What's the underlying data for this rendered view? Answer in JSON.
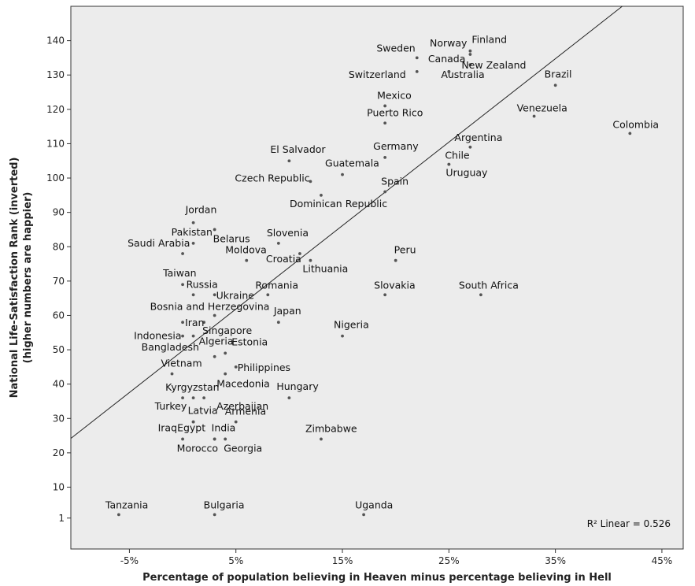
{
  "chart_data": {
    "type": "scatter",
    "title": "",
    "xlabel": "Percentage of population believing in Heaven minus percentage believing in Hell",
    "ylabel_line1": "National Life-Satisfaction Rank (inverted)",
    "ylabel_line2": "(higher numbers are happier)",
    "xlim": [
      -10.5,
      47
    ],
    "ylim": [
      -8,
      150
    ],
    "x_ticks": [
      -5,
      5,
      15,
      25,
      35,
      45
    ],
    "x_tick_labels": [
      "-5%",
      "5%",
      "15%",
      "25%",
      "35%",
      "45%"
    ],
    "y_ticks": [
      1,
      10,
      20,
      30,
      40,
      50,
      60,
      70,
      80,
      90,
      100,
      110,
      120,
      130,
      140
    ],
    "y_tick_labels": [
      "1",
      "10",
      "20",
      "30",
      "40",
      "50",
      "60",
      "70",
      "80",
      "90",
      "100",
      "110",
      "120",
      "130",
      "140"
    ],
    "grid": false,
    "fit_line": {
      "slope": 2.43,
      "intercept": 49.7
    },
    "r2_label": "R² Linear = 0.526",
    "points": [
      {
        "label": "Finland",
        "x": 27,
        "y": 137
      },
      {
        "label": "Norway",
        "x": 27,
        "y": 136
      },
      {
        "label": "Sweden",
        "x": 22,
        "y": 135
      },
      {
        "label": "Canada",
        "x": 27,
        "y": 133
      },
      {
        "label": "New Zealand",
        "x": 25,
        "y": 131
      },
      {
        "label": "Switzerland",
        "x": 22,
        "y": 131
      },
      {
        "label": "Australia",
        "x": 25,
        "y": 131
      },
      {
        "label": "Brazil",
        "x": 35,
        "y": 127
      },
      {
        "label": "Mexico",
        "x": 19,
        "y": 121
      },
      {
        "label": "Venezuela",
        "x": 33,
        "y": 118
      },
      {
        "label": "Puerto Rico",
        "x": 19,
        "y": 116
      },
      {
        "label": "Colombia",
        "x": 42,
        "y": 113
      },
      {
        "label": "Argentina",
        "x": 27,
        "y": 109
      },
      {
        "label": "Germany",
        "x": 19,
        "y": 106
      },
      {
        "label": "El Salvador",
        "x": 10,
        "y": 105
      },
      {
        "label": "Chile",
        "x": 25,
        "y": 104
      },
      {
        "label": "Uruguay",
        "x": 25,
        "y": 104
      },
      {
        "label": "Guatemala",
        "x": 15,
        "y": 101
      },
      {
        "label": "Czech Republic",
        "x": 12,
        "y": 99
      },
      {
        "label": "Spain",
        "x": 19,
        "y": 96
      },
      {
        "label": "Dominican Republic",
        "x": 13,
        "y": 95
      },
      {
        "label": "Jordan",
        "x": 1,
        "y": 87
      },
      {
        "label": "Belarus",
        "x": 3,
        "y": 85
      },
      {
        "label": "Pakistan",
        "x": 1,
        "y": 81
      },
      {
        "label": "Slovenia",
        "x": 9,
        "y": 81
      },
      {
        "label": "Saudi Arabia",
        "x": 0,
        "y": 78
      },
      {
        "label": "Moldova",
        "x": 6,
        "y": 76
      },
      {
        "label": "Croatia",
        "x": 11,
        "y": 78
      },
      {
        "label": "Lithuania",
        "x": 12,
        "y": 76
      },
      {
        "label": "Peru",
        "x": 20,
        "y": 76
      },
      {
        "label": "Taiwan",
        "x": 0,
        "y": 69
      },
      {
        "label": "Russia",
        "x": 1,
        "y": 66
      },
      {
        "label": "Ukraine",
        "x": 3,
        "y": 66
      },
      {
        "label": "Romania",
        "x": 8,
        "y": 66
      },
      {
        "label": "Slovakia",
        "x": 19,
        "y": 66
      },
      {
        "label": "South Africa",
        "x": 28,
        "y": 66
      },
      {
        "label": "Bosnia and Herzegovina",
        "x": 3,
        "y": 60
      },
      {
        "label": "Iran",
        "x": 0,
        "y": 58
      },
      {
        "label": "Singapore",
        "x": 2,
        "y": 58
      },
      {
        "label": "Japan",
        "x": 9,
        "y": 58
      },
      {
        "label": "Indonesia",
        "x": 0,
        "y": 54
      },
      {
        "label": "Nigeria",
        "x": 15,
        "y": 54
      },
      {
        "label": "Algeria",
        "x": 1,
        "y": 54
      },
      {
        "label": "Estonia",
        "x": 4,
        "y": 49
      },
      {
        "label": "Bangladesh",
        "x": 3,
        "y": 48
      },
      {
        "label": "Philippines",
        "x": 5,
        "y": 45
      },
      {
        "label": "Vietnam",
        "x": -1,
        "y": 43
      },
      {
        "label": "Macedonia",
        "x": 4,
        "y": 43
      },
      {
        "label": "Kyrgyzstan",
        "x": 0,
        "y": 36
      },
      {
        "label": "Azerbaijan",
        "x": 2,
        "y": 36
      },
      {
        "label": "Hungary",
        "x": 10,
        "y": 36
      },
      {
        "label": "Turkey",
        "x": 1,
        "y": 36
      },
      {
        "label": "Latvia",
        "x": 1,
        "y": 29
      },
      {
        "label": "Armenia",
        "x": 5,
        "y": 29
      },
      {
        "label": "Iraq",
        "x": 1,
        "y": 29
      },
      {
        "label": "Egypt",
        "x": 0,
        "y": 24
      },
      {
        "label": "India",
        "x": 3,
        "y": 24
      },
      {
        "label": "Zimbabwe",
        "x": 13,
        "y": 24
      },
      {
        "label": "Morocco",
        "x": 3,
        "y": 24
      },
      {
        "label": "Georgia",
        "x": 4,
        "y": 24
      },
      {
        "label": "Tanzania",
        "x": -6,
        "y": 2
      },
      {
        "label": "Bulgaria",
        "x": 3,
        "y": 2
      },
      {
        "label": "Uganda",
        "x": 17,
        "y": 2
      }
    ]
  }
}
